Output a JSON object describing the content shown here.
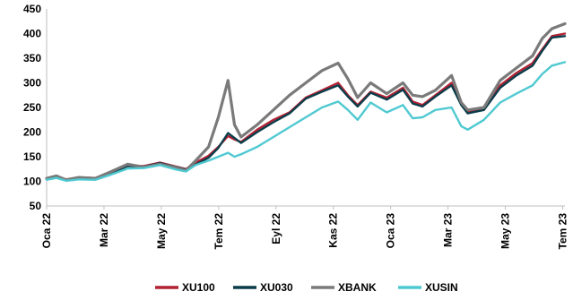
{
  "chart_data": {
    "type": "line",
    "title": "",
    "xlabel": "",
    "ylabel": "",
    "ylim": [
      50,
      450
    ],
    "yticks": [
      50,
      100,
      150,
      200,
      250,
      300,
      350,
      400,
      450
    ],
    "x_tick_labels": [
      "Oca 22",
      "Mar 22",
      "May 22",
      "Tem 22",
      "Eyl 22",
      "Kas 22",
      "Oca 23",
      "Mar 23",
      "May 23",
      "Tem 23"
    ],
    "grid": false,
    "legend_position": "bottom",
    "series": [
      {
        "name": "XU100",
        "color": "#b22234",
        "points": [
          [
            0,
            105
          ],
          [
            0.3,
            110
          ],
          [
            0.6,
            104
          ],
          [
            1,
            108
          ],
          [
            1.5,
            107
          ],
          [
            2,
            118
          ],
          [
            2.5,
            132
          ],
          [
            3,
            131
          ],
          [
            3.5,
            138
          ],
          [
            4,
            130
          ],
          [
            4.3,
            125
          ],
          [
            4.6,
            138
          ],
          [
            5,
            152
          ],
          [
            5.3,
            170
          ],
          [
            5.6,
            192
          ],
          [
            5.8,
            185
          ],
          [
            6,
            180
          ],
          [
            6.5,
            205
          ],
          [
            7,
            225
          ],
          [
            7.5,
            240
          ],
          [
            8,
            270
          ],
          [
            8.5,
            285
          ],
          [
            9,
            300
          ],
          [
            9.3,
            275
          ],
          [
            9.6,
            255
          ],
          [
            10,
            282
          ],
          [
            10.5,
            270
          ],
          [
            11,
            290
          ],
          [
            11.3,
            262
          ],
          [
            11.6,
            255
          ],
          [
            12,
            275
          ],
          [
            12.5,
            300
          ],
          [
            12.8,
            258
          ],
          [
            13,
            240
          ],
          [
            13.5,
            250
          ],
          [
            14,
            295
          ],
          [
            14.5,
            320
          ],
          [
            15,
            340
          ],
          [
            15.3,
            368
          ],
          [
            15.6,
            395
          ],
          [
            16,
            400
          ]
        ]
      },
      {
        "name": "XU030",
        "color": "#0b3d4a",
        "points": [
          [
            0,
            104
          ],
          [
            0.3,
            110
          ],
          [
            0.6,
            103
          ],
          [
            1,
            107
          ],
          [
            1.5,
            106
          ],
          [
            2,
            117
          ],
          [
            2.5,
            131
          ],
          [
            3,
            130
          ],
          [
            3.5,
            137
          ],
          [
            4,
            129
          ],
          [
            4.3,
            124
          ],
          [
            4.6,
            134
          ],
          [
            5,
            148
          ],
          [
            5.3,
            168
          ],
          [
            5.6,
            198
          ],
          [
            5.8,
            188
          ],
          [
            6,
            178
          ],
          [
            6.5,
            200
          ],
          [
            7,
            220
          ],
          [
            7.5,
            238
          ],
          [
            8,
            268
          ],
          [
            8.5,
            282
          ],
          [
            9,
            295
          ],
          [
            9.3,
            272
          ],
          [
            9.6,
            252
          ],
          [
            10,
            280
          ],
          [
            10.5,
            266
          ],
          [
            11,
            286
          ],
          [
            11.3,
            258
          ],
          [
            11.6,
            252
          ],
          [
            12,
            272
          ],
          [
            12.5,
            295
          ],
          [
            12.8,
            255
          ],
          [
            13,
            238
          ],
          [
            13.5,
            245
          ],
          [
            14,
            290
          ],
          [
            14.5,
            315
          ],
          [
            15,
            335
          ],
          [
            15.3,
            365
          ],
          [
            15.6,
            392
          ],
          [
            16,
            395
          ]
        ]
      },
      {
        "name": "XBANK",
        "color": "#7a7a7a",
        "points": [
          [
            0,
            106
          ],
          [
            0.3,
            111
          ],
          [
            0.6,
            103
          ],
          [
            1,
            108
          ],
          [
            1.5,
            106
          ],
          [
            2,
            120
          ],
          [
            2.5,
            135
          ],
          [
            3,
            129
          ],
          [
            3.5,
            135
          ],
          [
            4,
            128
          ],
          [
            4.3,
            122
          ],
          [
            4.6,
            142
          ],
          [
            5,
            170
          ],
          [
            5.3,
            230
          ],
          [
            5.6,
            305
          ],
          [
            5.8,
            215
          ],
          [
            6,
            190
          ],
          [
            6.5,
            215
          ],
          [
            7,
            245
          ],
          [
            7.5,
            275
          ],
          [
            8,
            300
          ],
          [
            8.5,
            325
          ],
          [
            9,
            340
          ],
          [
            9.3,
            308
          ],
          [
            9.6,
            270
          ],
          [
            10,
            300
          ],
          [
            10.5,
            278
          ],
          [
            11,
            300
          ],
          [
            11.3,
            275
          ],
          [
            11.6,
            272
          ],
          [
            12,
            285
          ],
          [
            12.5,
            315
          ],
          [
            12.8,
            260
          ],
          [
            13,
            245
          ],
          [
            13.5,
            250
          ],
          [
            14,
            305
          ],
          [
            14.5,
            330
          ],
          [
            15,
            355
          ],
          [
            15.3,
            390
          ],
          [
            15.6,
            410
          ],
          [
            16,
            420
          ]
        ]
      },
      {
        "name": "XUSIN",
        "color": "#4fc9d1",
        "points": [
          [
            0,
            103
          ],
          [
            0.3,
            107
          ],
          [
            0.6,
            101
          ],
          [
            1,
            104
          ],
          [
            1.5,
            103
          ],
          [
            2,
            114
          ],
          [
            2.5,
            126
          ],
          [
            3,
            127
          ],
          [
            3.5,
            133
          ],
          [
            4,
            124
          ],
          [
            4.3,
            120
          ],
          [
            4.6,
            133
          ],
          [
            5,
            142
          ],
          [
            5.3,
            150
          ],
          [
            5.6,
            158
          ],
          [
            5.8,
            150
          ],
          [
            6,
            155
          ],
          [
            6.5,
            170
          ],
          [
            7,
            190
          ],
          [
            7.5,
            210
          ],
          [
            8,
            230
          ],
          [
            8.5,
            250
          ],
          [
            9,
            262
          ],
          [
            9.3,
            245
          ],
          [
            9.6,
            225
          ],
          [
            10,
            260
          ],
          [
            10.5,
            240
          ],
          [
            11,
            255
          ],
          [
            11.3,
            228
          ],
          [
            11.6,
            230
          ],
          [
            12,
            245
          ],
          [
            12.5,
            250
          ],
          [
            12.8,
            212
          ],
          [
            13,
            205
          ],
          [
            13.5,
            225
          ],
          [
            14,
            260
          ],
          [
            14.5,
            278
          ],
          [
            15,
            295
          ],
          [
            15.3,
            318
          ],
          [
            15.6,
            335
          ],
          [
            16,
            342
          ]
        ]
      }
    ]
  }
}
